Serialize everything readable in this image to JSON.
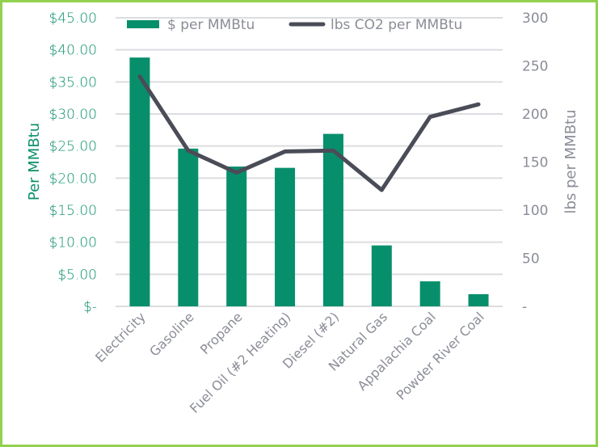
{
  "chart_data": {
    "type": "bar",
    "title": "",
    "categories": [
      "Electricity",
      "Gasoline",
      "Propane",
      "Fuel Oil (#2 Heating)",
      "Diesel (#2)",
      "Natural Gas",
      "Appalachia Coal",
      "Powder River Coal"
    ],
    "series": [
      {
        "name": "$ per MMBtu",
        "type": "bar",
        "axis": "left",
        "color": "#068F6A",
        "values": [
          38.8,
          24.6,
          21.8,
          21.6,
          26.9,
          9.5,
          3.9,
          1.9
        ]
      },
      {
        "name": "lbs CO2 per MMBtu",
        "type": "line",
        "axis": "right",
        "color": "#4A4D57",
        "values": [
          239,
          162,
          139,
          161,
          162,
          121,
          197,
          210
        ]
      }
    ],
    "xlabel": "",
    "ylabel": "Per MMBtu",
    "ylabel_right": "lbs per MMBtu",
    "ylim": [
      0,
      45
    ],
    "ylim_right": [
      0,
      300
    ],
    "yticks_left": [
      "$-",
      "$5.00",
      "$10.00",
      "$15.00",
      "$20.00",
      "$25.00",
      "$30.00",
      "$35.00",
      "$40.00",
      "$45.00"
    ],
    "yticks_right": [
      "-",
      "50",
      "100",
      "150",
      "200",
      "250",
      "300"
    ],
    "grid": true,
    "legend_position": "top"
  },
  "legend": {
    "bar_label": "$ per MMBtu",
    "line_label": "lbs CO2 per MMBtu"
  },
  "colors": {
    "bar": "#068F6A",
    "line": "#4A4D57",
    "border": "#92D050",
    "grid": "#DCDDE1",
    "left_axis_text": "#0A8F6A",
    "right_axis_text": "#8A8D96"
  }
}
